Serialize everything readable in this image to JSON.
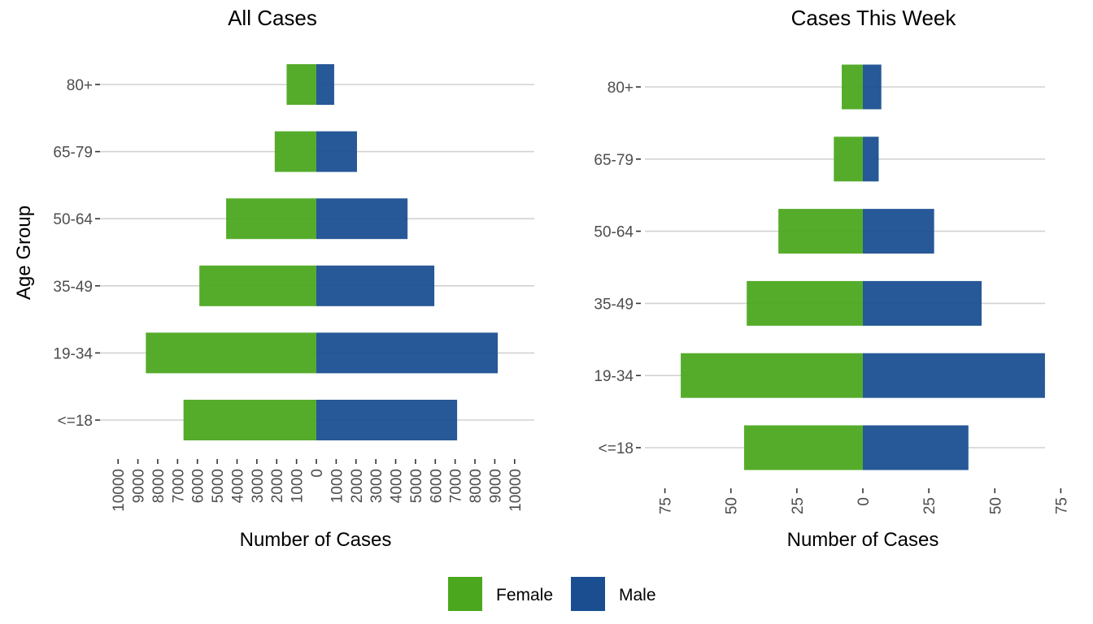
{
  "chart_data": [
    {
      "type": "bar",
      "orientation": "horizontal",
      "stacking": "diverging",
      "title": "All Cases",
      "xlabel": "Number of Cases",
      "ylabel": "Age Group",
      "categories": [
        "<=18",
        "19-34",
        "35-49",
        "50-64",
        "65-79",
        "80+"
      ],
      "series": [
        {
          "name": "Female",
          "values": [
            -6700,
            -8600,
            -5900,
            -4550,
            -2100,
            -1500
          ]
        },
        {
          "name": "Male",
          "values": [
            7100,
            9150,
            5950,
            4600,
            2050,
            900
          ]
        }
      ],
      "xlim": [
        -10000,
        10000
      ],
      "xticks": [
        -10000,
        -9000,
        -8000,
        -7000,
        -6000,
        -5000,
        -4000,
        -3000,
        -2000,
        -1000,
        0,
        1000,
        2000,
        3000,
        4000,
        5000,
        6000,
        7000,
        8000,
        9000,
        10000
      ],
      "xtick_labels": [
        "10000",
        "9000",
        "8000",
        "7000",
        "6000",
        "5000",
        "4000",
        "3000",
        "2000",
        "1000",
        "0",
        "1000",
        "2000",
        "3000",
        "4000",
        "5000",
        "6000",
        "7000",
        "8000",
        "9000",
        "10000"
      ],
      "grid": "horizontal"
    },
    {
      "type": "bar",
      "orientation": "horizontal",
      "stacking": "diverging",
      "title": "Cases This Week",
      "xlabel": "Number of Cases",
      "ylabel": "",
      "categories": [
        "<=18",
        "19-34",
        "35-49",
        "50-64",
        "65-79",
        "80+"
      ],
      "series": [
        {
          "name": "Female",
          "values": [
            -45,
            -69,
            -44,
            -32,
            -11,
            -8
          ]
        },
        {
          "name": "Male",
          "values": [
            40,
            69,
            45,
            27,
            6,
            7
          ]
        }
      ],
      "xlim": [
        -75,
        75
      ],
      "xticks": [
        -75,
        -50,
        -25,
        0,
        25,
        50,
        75
      ],
      "xtick_labels": [
        "75",
        "50",
        "25",
        "0",
        "25",
        "50",
        "75"
      ],
      "grid": "horizontal"
    }
  ],
  "legend": {
    "position": "bottom",
    "items": [
      {
        "label": "Female",
        "color": "#4aa71e"
      },
      {
        "label": "Male",
        "color": "#1a4e91"
      }
    ]
  },
  "colors": {
    "female": "#4aa71e",
    "male": "#1a4e91"
  }
}
